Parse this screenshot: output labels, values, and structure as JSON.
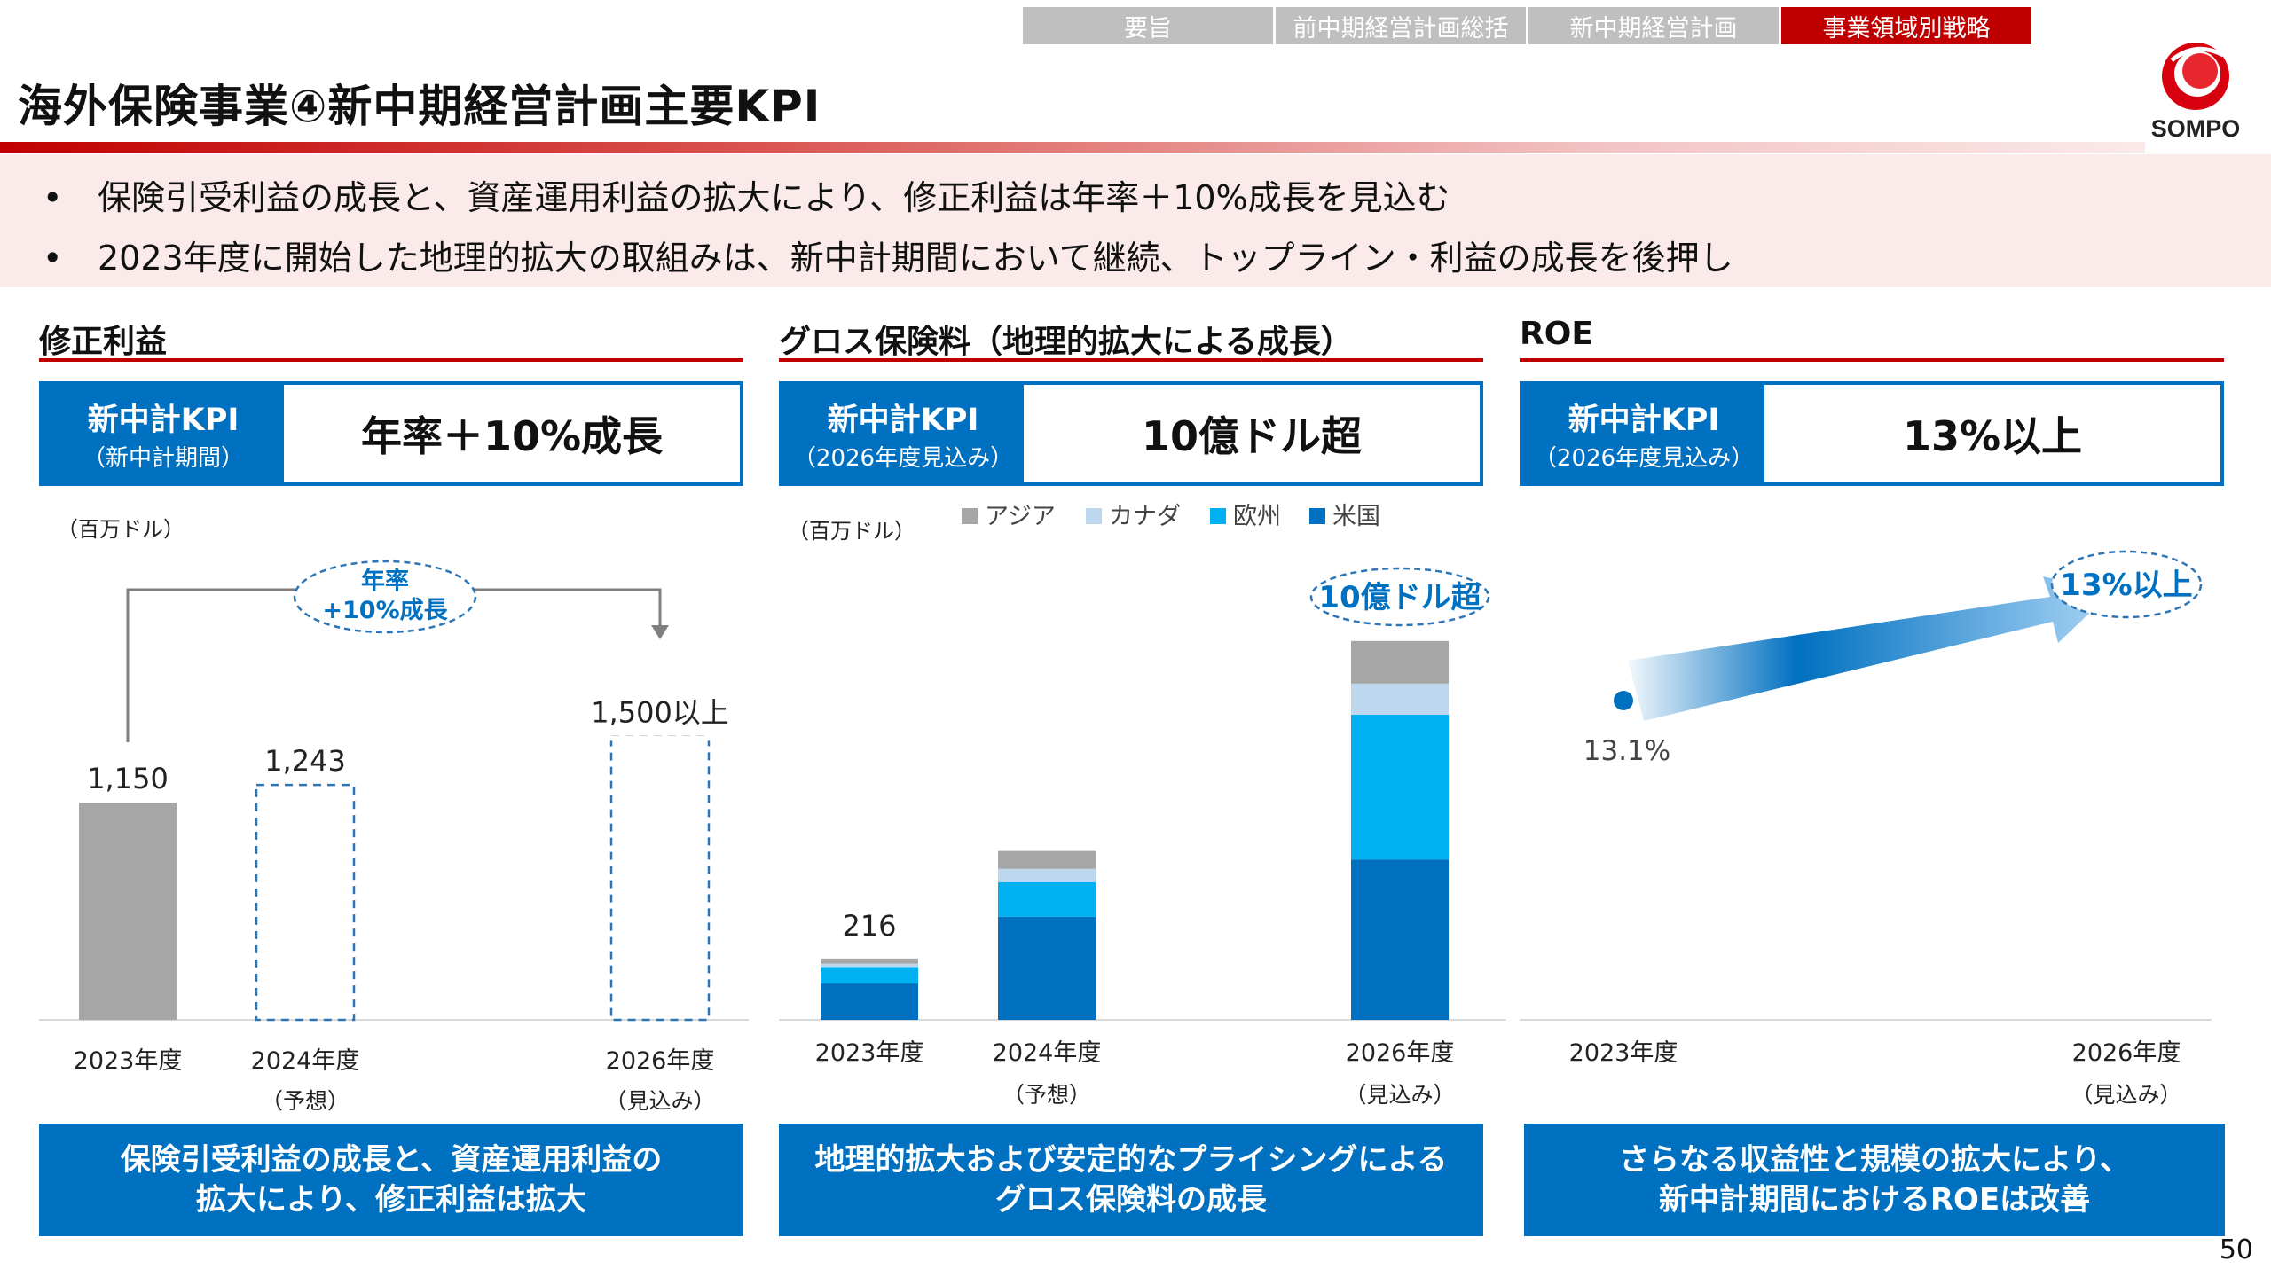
{
  "nav": {
    "tabs": [
      {
        "label": "要旨",
        "active": false
      },
      {
        "label": "前中期経営計画総括",
        "active": false
      },
      {
        "label": "新中期経営計画",
        "active": false
      },
      {
        "label": "事業領域別戦略",
        "active": true
      }
    ]
  },
  "page_title": "海外保険事業④新中期経営計画主要KPI",
  "logo": {
    "text": "SOMPO",
    "icon": "sompo-logo-icon"
  },
  "summary": {
    "bullet": "•",
    "items": [
      "保険引受利益の成長と、資産運用利益の拡大により、修正利益は年率＋10%成長を見込む",
      "2023年度に開始した地理的拡大の取組みは、新中計期間において継続、トップライン・利益の成長を後押し"
    ]
  },
  "sections": [
    {
      "title": "修正利益",
      "kpi_label": "新中計KPI",
      "kpi_sub": "（新中計期間）",
      "kpi_value": "年率＋10%成長",
      "footer": "保険引受利益の成長と、資産運用利益の\n拡大により、修正利益は拡大"
    },
    {
      "title": "グロス保険料（地理的拡大による成長）",
      "kpi_label": "新中計KPI",
      "kpi_sub": "（2026年度見込み）",
      "kpi_value": "10億ドル超",
      "footer": "地理的拡大および安定的なプライシングによる\nグロス保険料の成長"
    },
    {
      "title": "ROE",
      "kpi_label": "新中計KPI",
      "kpi_sub": "（2026年度見込み）",
      "kpi_value": "13%以上",
      "footer": "さらなる収益性と規模の拡大により、\n新中計期間におけるROEは改善"
    }
  ],
  "colors": {
    "accent_red": "#c00000",
    "kpi_blue": "#0070c0",
    "gray_bar": "#a6a6a6",
    "asia": "#a6a6a6",
    "canada": "#bdd7ee",
    "europe": "#00b0f0",
    "usa": "#0070c0"
  },
  "chart_data": [
    {
      "type": "bar",
      "unit_label": "（百万ドル）",
      "categories": [
        "2023年度",
        "2024年度",
        "2026年度"
      ],
      "category_subs": [
        "",
        "（予想）",
        "（見込み）"
      ],
      "values": [
        1150,
        1243,
        1500
      ],
      "value_labels": [
        "1,150",
        "1,243",
        "1,500以上"
      ],
      "bar_styles": [
        "solid",
        "dashed",
        "dashed"
      ],
      "annotation": {
        "line1": "年率",
        "line2": "+10%成長"
      },
      "ylim": [
        0,
        1800
      ]
    },
    {
      "type": "bar",
      "stacked": true,
      "unit_label": "（百万ドル）",
      "categories": [
        "2023年度",
        "2024年度",
        "2026年度"
      ],
      "category_subs": [
        "",
        "（予想）",
        "（見込み）"
      ],
      "legend": [
        "アジア",
        "カナダ",
        "欧州",
        "米国"
      ],
      "series": [
        {
          "name": "米国",
          "values": [
            128,
            363,
            565
          ]
        },
        {
          "name": "欧州",
          "values": [
            58,
            122,
            510
          ]
        },
        {
          "name": "カナダ",
          "values": [
            12,
            47,
            110
          ]
        },
        {
          "name": "アジア",
          "values": [
            18,
            63,
            150
          ]
        }
      ],
      "total_labels": [
        "216",
        "",
        ""
      ],
      "annotation": "10億ドル超",
      "ylim": [
        0,
        1500
      ]
    },
    {
      "type": "scatter",
      "categories": [
        "2023年度",
        "2026年度"
      ],
      "category_subs": [
        "",
        "（見込み）"
      ],
      "points": [
        {
          "x": "2023年度",
          "y": 13.1,
          "label": "13.1%"
        }
      ],
      "target": {
        "x": "2026年度",
        "label": "13%以上"
      }
    }
  ]
}
